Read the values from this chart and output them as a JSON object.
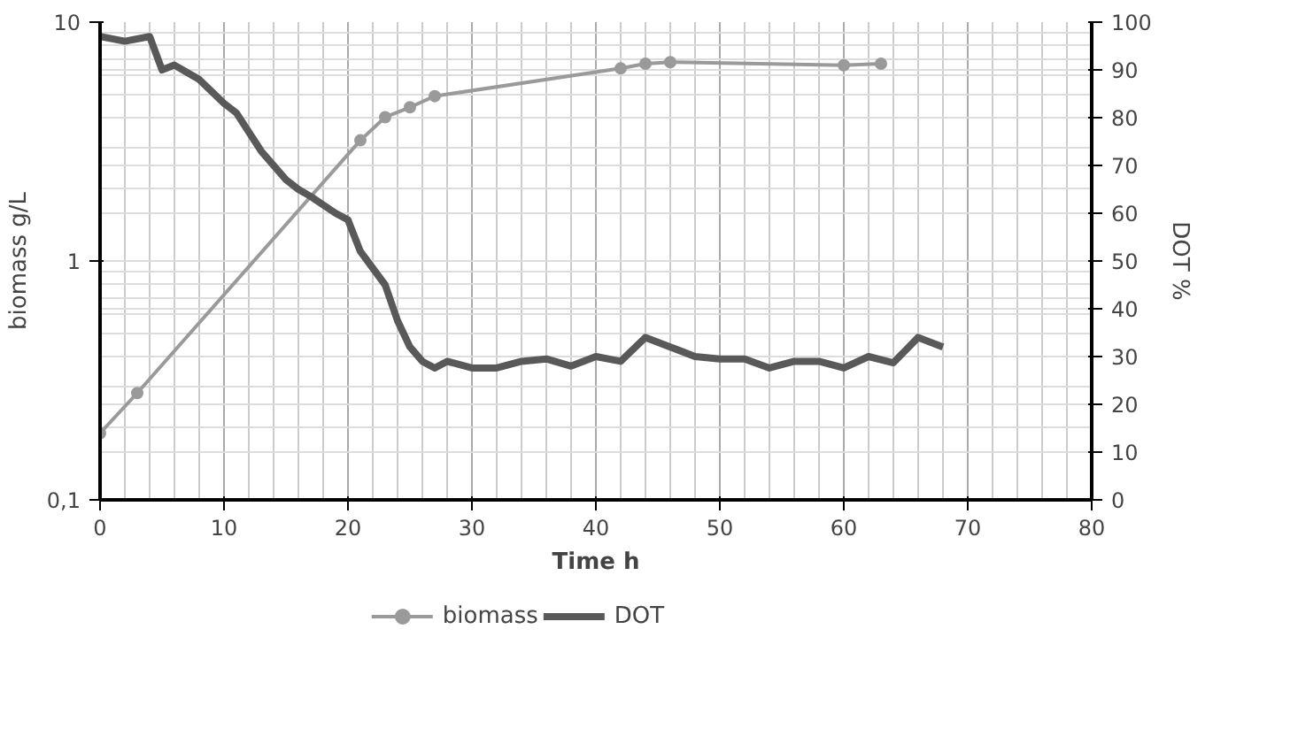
{
  "chart_data": {
    "type": "line",
    "xlabel": "Time h",
    "ylabel": "biomass g/L",
    "y2label": "DOT %",
    "xlim": [
      0,
      80
    ],
    "xticks": [
      0,
      10,
      20,
      30,
      40,
      50,
      60,
      70,
      80
    ],
    "ylim": [
      0.1,
      10
    ],
    "yticks": [
      {
        "value": 0.1,
        "label": "0,1"
      },
      1,
      10
    ],
    "log": "y",
    "y2lim": [
      0,
      100
    ],
    "y2ticks": [
      0,
      10,
      20,
      30,
      40,
      50,
      60,
      70,
      80,
      90,
      100
    ],
    "grid": true,
    "legend": "bottom",
    "series": [
      {
        "name": "biomass",
        "color": "#9a9a9a",
        "marker": "circle",
        "x": [
          0,
          3,
          21,
          23,
          25,
          27,
          42,
          44,
          46,
          60,
          63
        ],
        "values": [
          0.19,
          0.28,
          3.2,
          4.0,
          4.4,
          4.9,
          6.4,
          6.7,
          6.8,
          6.6,
          6.7
        ]
      },
      {
        "name": "DOT",
        "color": "#595959",
        "marker": "none",
        "axis": "y2",
        "x": [
          0,
          2,
          4,
          5,
          6,
          7,
          8,
          10,
          11,
          13,
          15,
          16,
          17,
          19,
          20,
          21,
          23,
          24,
          25,
          26,
          27,
          28,
          30,
          32,
          34,
          36,
          38,
          40,
          42,
          44,
          46,
          48,
          50,
          52,
          54,
          56,
          58,
          60,
          62,
          64,
          66,
          68
        ],
        "values": [
          97,
          96,
          97,
          90,
          91,
          89.5,
          88,
          83,
          81,
          73,
          67,
          65,
          63.5,
          60,
          58.6,
          52,
          45,
          37.5,
          32,
          29,
          27.6,
          29,
          27.6,
          27.6,
          29,
          29.5,
          28,
          30,
          29,
          34,
          32,
          30,
          29.5,
          29.5,
          27.6,
          29,
          29,
          27.6,
          30,
          28.7,
          34,
          32
        ]
      }
    ]
  }
}
